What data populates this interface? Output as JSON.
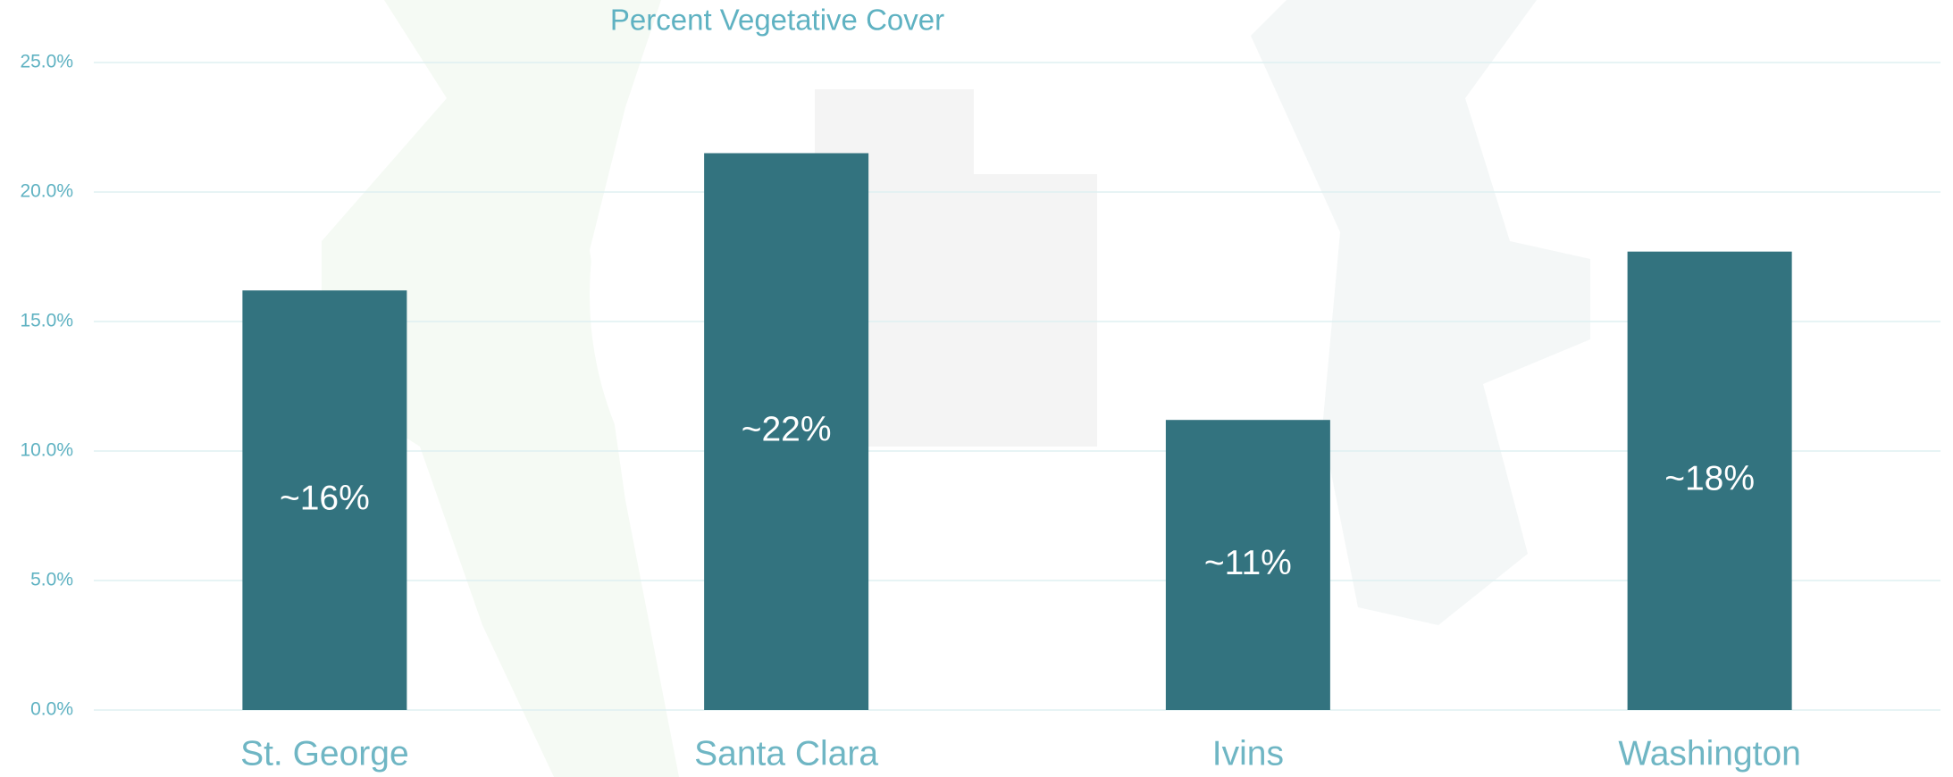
{
  "chart_data": {
    "type": "bar",
    "title": "Percent Vegetative Cover",
    "categories": [
      "St. George",
      "Santa Clara",
      "Ivins",
      "Washington"
    ],
    "values": [
      16.2,
      21.5,
      11.2,
      17.7
    ],
    "value_labels": [
      "~16%",
      "~22%",
      "~11%",
      "~18%"
    ],
    "color": "#33737f",
    "ylim": [
      0,
      25
    ],
    "yticks": [
      {
        "value": 0,
        "label": "0.0%"
      },
      {
        "value": 5,
        "label": "5.0%"
      },
      {
        "value": 10,
        "label": "10.0%"
      },
      {
        "value": 15,
        "label": "15.0%"
      },
      {
        "value": 20,
        "label": "20.0%"
      },
      {
        "value": 25,
        "label": "25.0%"
      }
    ],
    "grid": true
  }
}
